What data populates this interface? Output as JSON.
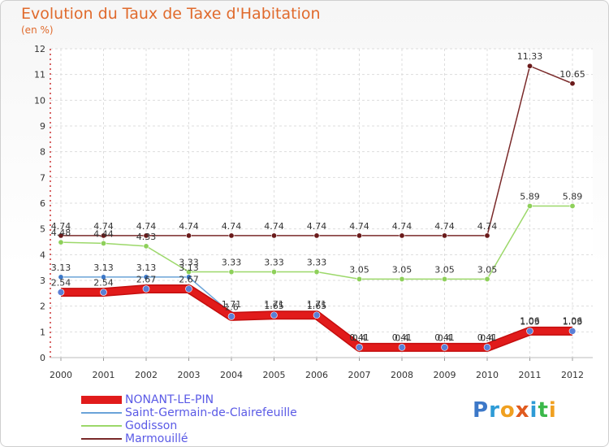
{
  "header": {
    "title": "Evolution du Taux de Taxe d'Habitation",
    "subtitle": "(en %)"
  },
  "logo": {
    "text": "Proxiti",
    "letters": [
      "P",
      "r",
      "o",
      "x",
      "i",
      "t",
      "i"
    ],
    "colors": [
      "#3c78c8",
      "#2e9bd6",
      "#f0a020",
      "#e05a1e",
      "#2e9bd6",
      "#3ab84a",
      "#f0a020"
    ]
  },
  "chart_data": {
    "type": "line",
    "title": "Evolution du Taux de Taxe d'Habitation",
    "ylabel": "(en %)",
    "xlabel": "",
    "categories": [
      "2000",
      "2001",
      "2002",
      "2003",
      "2004",
      "2005",
      "2006",
      "2007",
      "2008",
      "2009",
      "2010",
      "2011",
      "2012"
    ],
    "ylim": [
      0,
      12
    ],
    "yticks": [
      "0",
      "1",
      "2",
      "3",
      "4",
      "5",
      "6",
      "7",
      "8",
      "9",
      "10",
      "11",
      "12"
    ],
    "grid": true,
    "legend_position": "bottom-left",
    "series": [
      {
        "name": "NONANT-LE-PIN",
        "color": "#e11b1b",
        "marker": "#5a7fd6",
        "values": [
          2.54,
          2.54,
          2.67,
          2.67,
          1.6,
          1.65,
          1.65,
          0.4,
          0.4,
          0.4,
          0.4,
          1.03,
          1.03
        ],
        "labels": [
          "2.54",
          "2.54",
          "2.67",
          "2.67",
          "1.6",
          "1.65",
          "1.65",
          "0.4",
          "0.4",
          "0.4",
          "0.4",
          "1.03",
          "1.03"
        ]
      },
      {
        "name": "Saint-Germain-de-Clairefeuille",
        "color": "#6aa3d8",
        "marker": "#3c78c8",
        "values": [
          3.13,
          3.13,
          3.13,
          3.13,
          1.71,
          1.71,
          1.71,
          0.41,
          0.41,
          0.41,
          0.41,
          1.06,
          1.06
        ],
        "labels": [
          "3.13",
          "3.13",
          "3.13",
          "3.13",
          "1.71",
          "1.71",
          "1.71",
          "0.41",
          "0.41",
          "0.41",
          "0.41",
          "1.06",
          "1.06"
        ]
      },
      {
        "name": "Godisson",
        "color": "#9cd86a",
        "marker": "#8ed05a",
        "values": [
          4.48,
          4.44,
          4.33,
          3.33,
          3.33,
          3.33,
          3.33,
          3.05,
          3.05,
          3.05,
          3.05,
          5.89,
          5.89
        ],
        "labels": [
          "4.48",
          "4.44",
          "4.33",
          "3.33",
          "3.33",
          "3.33",
          "3.33",
          "3.05",
          "3.05",
          "3.05",
          "3.05",
          "5.89",
          "5.89"
        ]
      },
      {
        "name": "Marmouillé",
        "color": "#7a2a2a",
        "marker": "#6a1a1a",
        "values": [
          4.74,
          4.74,
          4.74,
          4.74,
          4.74,
          4.74,
          4.74,
          4.74,
          4.74,
          4.74,
          4.74,
          11.33,
          10.65
        ],
        "labels": [
          "4.74",
          "4.74",
          "4.74",
          "4.74",
          "4.74",
          "4.74",
          "4.74",
          "4.74",
          "4.74",
          "4.74",
          "4.74",
          "11.33",
          "10.65"
        ]
      }
    ]
  }
}
